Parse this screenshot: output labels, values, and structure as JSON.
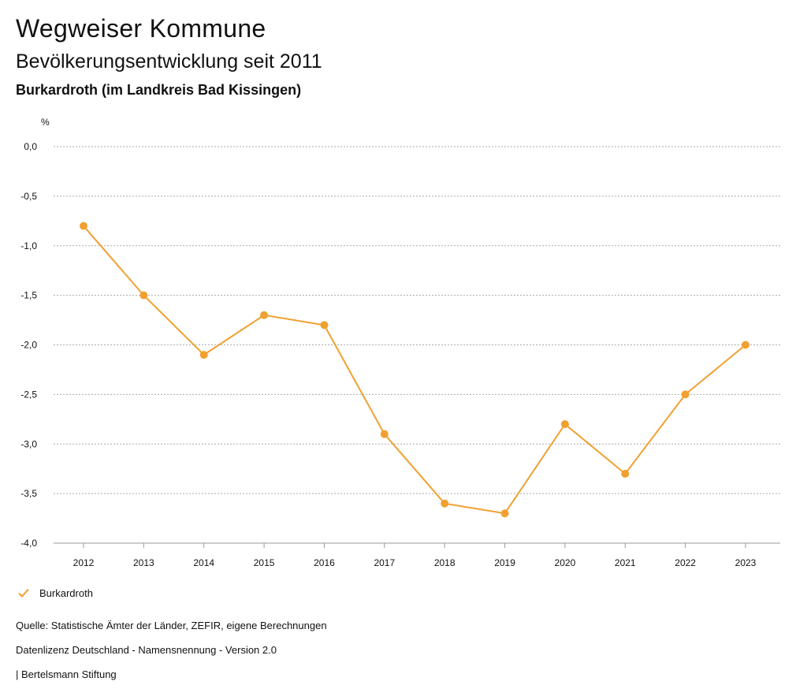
{
  "header": {
    "title": "Wegweiser Kommune",
    "subtitle": "Bevölkerungsentwicklung seit 2011",
    "place": "Burkardroth (im Landkreis Bad Kissingen)"
  },
  "colors": {
    "series": "#f0a030",
    "grid": "#aaaaaa",
    "text": "#111111"
  },
  "chart_data": {
    "type": "line",
    "y_unit_label": "%",
    "ylim": [
      -4.0,
      0.0
    ],
    "yticks": [
      "0,0",
      "-0,5",
      "-1,0",
      "-1,5",
      "-2,0",
      "-2,5",
      "-3,0",
      "-3,5",
      "-4,0"
    ],
    "ytick_values": [
      0.0,
      -0.5,
      -1.0,
      -1.5,
      -2.0,
      -2.5,
      -3.0,
      -3.5,
      -4.0
    ],
    "grid": true,
    "legend_position": "bottom-left",
    "x": [
      "2012",
      "2013",
      "2014",
      "2015",
      "2016",
      "2017",
      "2018",
      "2019",
      "2020",
      "2021",
      "2022",
      "2023"
    ],
    "series": [
      {
        "name": "Burkardroth",
        "values": [
          -0.8,
          -1.5,
          -2.1,
          -1.7,
          -1.8,
          -2.9,
          -3.6,
          -3.7,
          -2.8,
          -3.3,
          -2.5,
          -2.0
        ]
      }
    ]
  },
  "legend": {
    "label": "Burkardroth",
    "icon": "check-icon"
  },
  "footer": {
    "source": "Quelle: Statistische Ämter der Länder, ZEFIR, eigene Berechnungen",
    "license": "Datenlizenz Deutschland - Namensnennung - Version 2.0",
    "credit": "| Bertelsmann Stiftung"
  }
}
